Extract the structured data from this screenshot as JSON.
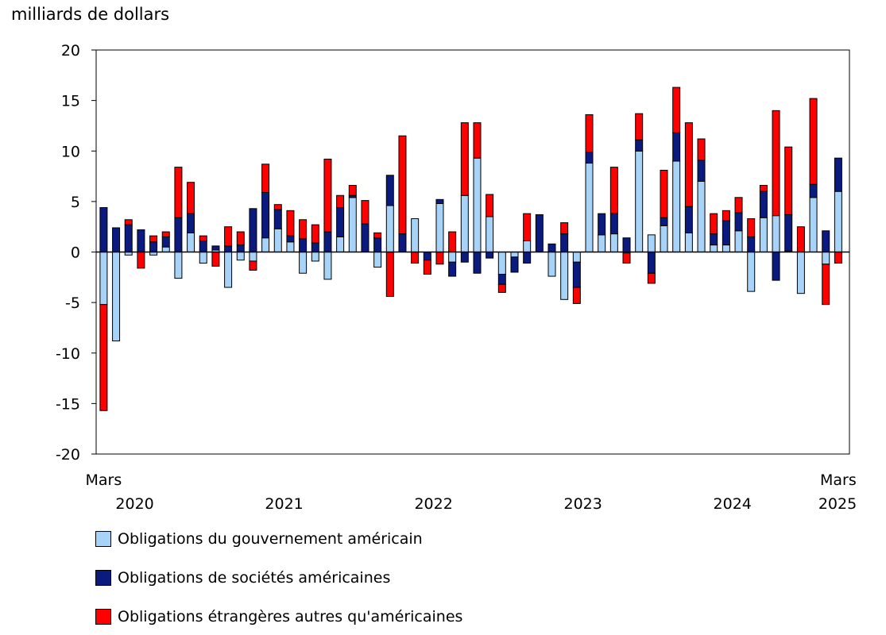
{
  "chart_data": {
    "type": "bar",
    "stacked": true,
    "unit_label": "milliards de dollars",
    "ylim": [
      -20,
      20
    ],
    "yticks": [
      20,
      15,
      10,
      5,
      0,
      -5,
      -10,
      -15,
      -20
    ],
    "x_first_label": "Mars",
    "x_last_label": "Mars",
    "years": [
      "2020",
      "2021",
      "2022",
      "2023",
      "2024",
      "2025"
    ],
    "year_positions": [
      2.5,
      14.5,
      26.5,
      38.5,
      50.5,
      60
    ],
    "colors": {
      "gov": "#a6d3f7",
      "corp": "#0a1a7f",
      "foreign": "#ff0000",
      "edge": "#000000"
    },
    "legend": [
      {
        "key": "gov",
        "label": "Obligations du gouvernement américain"
      },
      {
        "key": "corp",
        "label": "Obligations de sociétés américaines"
      },
      {
        "key": "foreign",
        "label": "Obligations étrangères autres qu'américaines"
      }
    ],
    "series": [
      {
        "key": "gov",
        "name": "Obligations du gouvernement américain",
        "values": [
          -5.2,
          -8.8,
          -0.3,
          0.0,
          -0.3,
          0.5,
          -2.6,
          1.9,
          -1.1,
          0.2,
          -3.5,
          -0.8,
          -0.9,
          1.4,
          2.3,
          1.0,
          -2.1,
          -0.9,
          -2.7,
          1.5,
          5.4,
          0.0,
          -1.5,
          4.6,
          0.0,
          3.3,
          0.0,
          4.8,
          -1.0,
          5.6,
          9.3,
          3.5,
          -2.2,
          -0.5,
          1.1,
          0.0,
          -2.4,
          -4.7,
          -1.0,
          8.8,
          1.7,
          1.8,
          -0.1,
          10.0,
          1.7,
          2.6,
          9.0,
          1.9,
          7.0,
          0.7,
          0.7,
          2.1,
          -3.9,
          3.4,
          3.6,
          0.1,
          -4.1,
          5.4,
          -1.2,
          6.0
        ]
      },
      {
        "key": "corp",
        "name": "Obligations de sociétés américaines",
        "values": [
          4.4,
          2.4,
          2.7,
          2.2,
          1.0,
          1.0,
          3.4,
          1.9,
          1.1,
          0.4,
          0.6,
          0.7,
          4.3,
          4.5,
          1.9,
          0.6,
          1.3,
          0.9,
          2.0,
          2.9,
          0.2,
          2.8,
          1.4,
          3.0,
          1.8,
          0.0,
          -0.8,
          0.4,
          -1.4,
          -1.0,
          -2.1,
          -0.6,
          -1.0,
          -1.5,
          -1.1,
          3.7,
          0.8,
          1.8,
          -2.5,
          1.1,
          2.1,
          2.0,
          1.4,
          1.1,
          -2.1,
          0.8,
          2.8,
          2.6,
          2.1,
          1.1,
          2.4,
          1.8,
          1.5,
          2.6,
          -2.8,
          3.6,
          0.0,
          1.3,
          2.1,
          3.3
        ]
      },
      {
        "key": "foreign",
        "name": "Obligations étrangères autres qu'américaines",
        "values": [
          -10.5,
          0.0,
          0.5,
          -1.6,
          0.6,
          0.5,
          5.0,
          3.1,
          0.5,
          -1.4,
          1.9,
          1.3,
          -0.9,
          2.8,
          0.5,
          2.5,
          1.9,
          1.8,
          7.2,
          1.2,
          1.0,
          2.3,
          0.5,
          -4.4,
          9.7,
          -1.1,
          -1.4,
          -1.2,
          2.0,
          7.2,
          3.5,
          2.2,
          -0.8,
          0.0,
          2.7,
          0.0,
          0.0,
          1.1,
          -1.6,
          3.7,
          0.0,
          4.6,
          -1.0,
          2.6,
          -1.0,
          4.7,
          4.5,
          8.3,
          2.1,
          2.0,
          1.0,
          1.5,
          1.8,
          0.6,
          10.4,
          6.7,
          2.5,
          8.5,
          -4.0,
          -1.1
        ]
      }
    ]
  }
}
